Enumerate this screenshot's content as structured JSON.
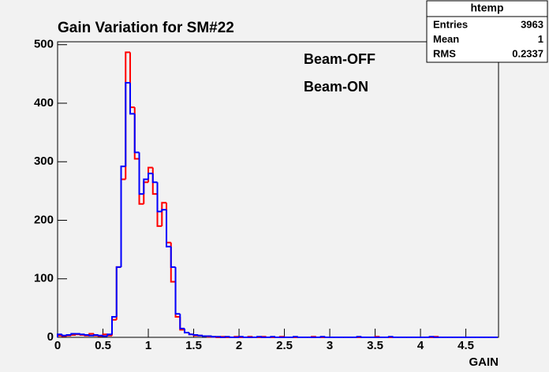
{
  "chart_data": {
    "type": "histogram",
    "title": "Gain Variation for SM#22",
    "x_label": "GAIN",
    "bins": [
      0,
      0.05,
      0.1,
      0.15,
      0.2,
      0.25,
      0.3,
      0.35,
      0.4,
      0.45,
      0.5,
      0.55,
      0.6,
      0.65,
      0.7,
      0.75,
      0.8,
      0.85,
      0.9,
      0.95,
      1,
      1.05,
      1.1,
      1.15,
      1.2,
      1.25,
      1.3,
      1.35,
      1.4,
      1.45,
      1.5,
      1.55,
      1.6,
      1.65,
      1.7,
      1.75,
      1.8,
      1.85,
      1.9,
      1.95,
      2,
      2.05,
      2.1,
      2.15,
      2.2,
      2.25,
      2.3,
      2.35,
      2.4,
      2.45,
      2.5,
      2.55,
      2.6,
      2.65,
      2.7,
      2.75,
      2.8,
      2.85,
      2.9,
      2.95,
      3,
      3.05,
      3.1,
      3.15,
      3.2,
      3.25,
      3.3,
      3.35,
      3.4,
      3.45,
      3.5,
      3.55,
      3.6,
      3.65,
      3.7,
      3.75,
      3.8,
      3.85,
      3.9,
      3.95,
      4,
      4.05,
      4.1,
      4.15,
      4.2,
      4.25,
      4.3,
      4.35,
      4.4,
      4.45,
      4.5,
      4.55,
      4.6,
      4.65,
      4.7,
      4.75,
      4.8,
      4.85
    ],
    "series": [
      {
        "name": "Beam-OFF",
        "color": "#0000ff",
        "values": [
          5,
          3,
          4,
          6,
          6,
          5,
          4,
          3,
          4,
          3,
          2,
          5,
          35,
          120,
          292,
          435,
          382,
          316,
          245,
          270,
          280,
          265,
          215,
          218,
          155,
          120,
          40,
          15,
          8,
          5,
          4,
          3,
          2,
          2,
          1,
          1,
          0,
          1,
          0,
          0,
          1,
          0,
          0,
          0,
          1,
          0,
          0,
          1,
          0,
          0,
          0,
          0,
          1,
          0,
          0,
          0,
          0,
          0,
          1,
          0,
          0,
          0,
          0,
          0,
          0,
          0,
          1,
          0,
          0,
          0,
          0,
          0,
          0,
          1,
          0,
          0,
          0,
          0,
          0,
          0,
          0,
          0,
          1,
          0,
          0,
          0,
          0,
          0,
          0,
          0,
          0,
          0,
          0,
          0,
          0,
          0,
          0
        ]
      },
      {
        "name": "Beam-ON",
        "color": "#ff0000",
        "values": [
          3,
          2,
          3,
          4,
          5,
          4,
          3,
          6,
          3,
          2,
          5,
          3,
          30,
          120,
          270,
          487,
          393,
          305,
          228,
          265,
          290,
          245,
          190,
          230,
          162,
          95,
          35,
          13,
          8,
          5,
          3,
          3,
          2,
          1,
          1,
          0,
          1,
          0,
          0,
          1,
          0,
          0,
          1,
          0,
          0,
          1,
          0,
          0,
          0,
          1,
          0,
          0,
          0,
          0,
          0,
          0,
          1,
          0,
          0,
          0,
          0,
          0,
          0,
          0,
          0,
          0,
          0,
          0,
          0,
          0,
          1,
          0,
          0,
          0,
          0,
          0,
          0,
          0,
          0,
          0,
          0,
          0,
          0,
          1,
          0,
          0,
          0,
          0,
          0,
          0,
          0,
          0,
          0,
          0,
          0,
          0,
          0
        ]
      }
    ],
    "xlim": [
      0,
      4.86
    ],
    "ylim": [
      0,
      505
    ],
    "xticks": [
      0,
      0.5,
      1,
      1.5,
      2,
      2.5,
      3,
      3.5,
      4,
      4.5
    ],
    "yticks": [
      0,
      100,
      200,
      300,
      400,
      500
    ],
    "stats": {
      "title": "htemp",
      "rows": [
        [
          "Entries",
          3963
        ],
        [
          "Mean",
          1
        ],
        [
          "RMS",
          0.2337
        ]
      ]
    }
  }
}
